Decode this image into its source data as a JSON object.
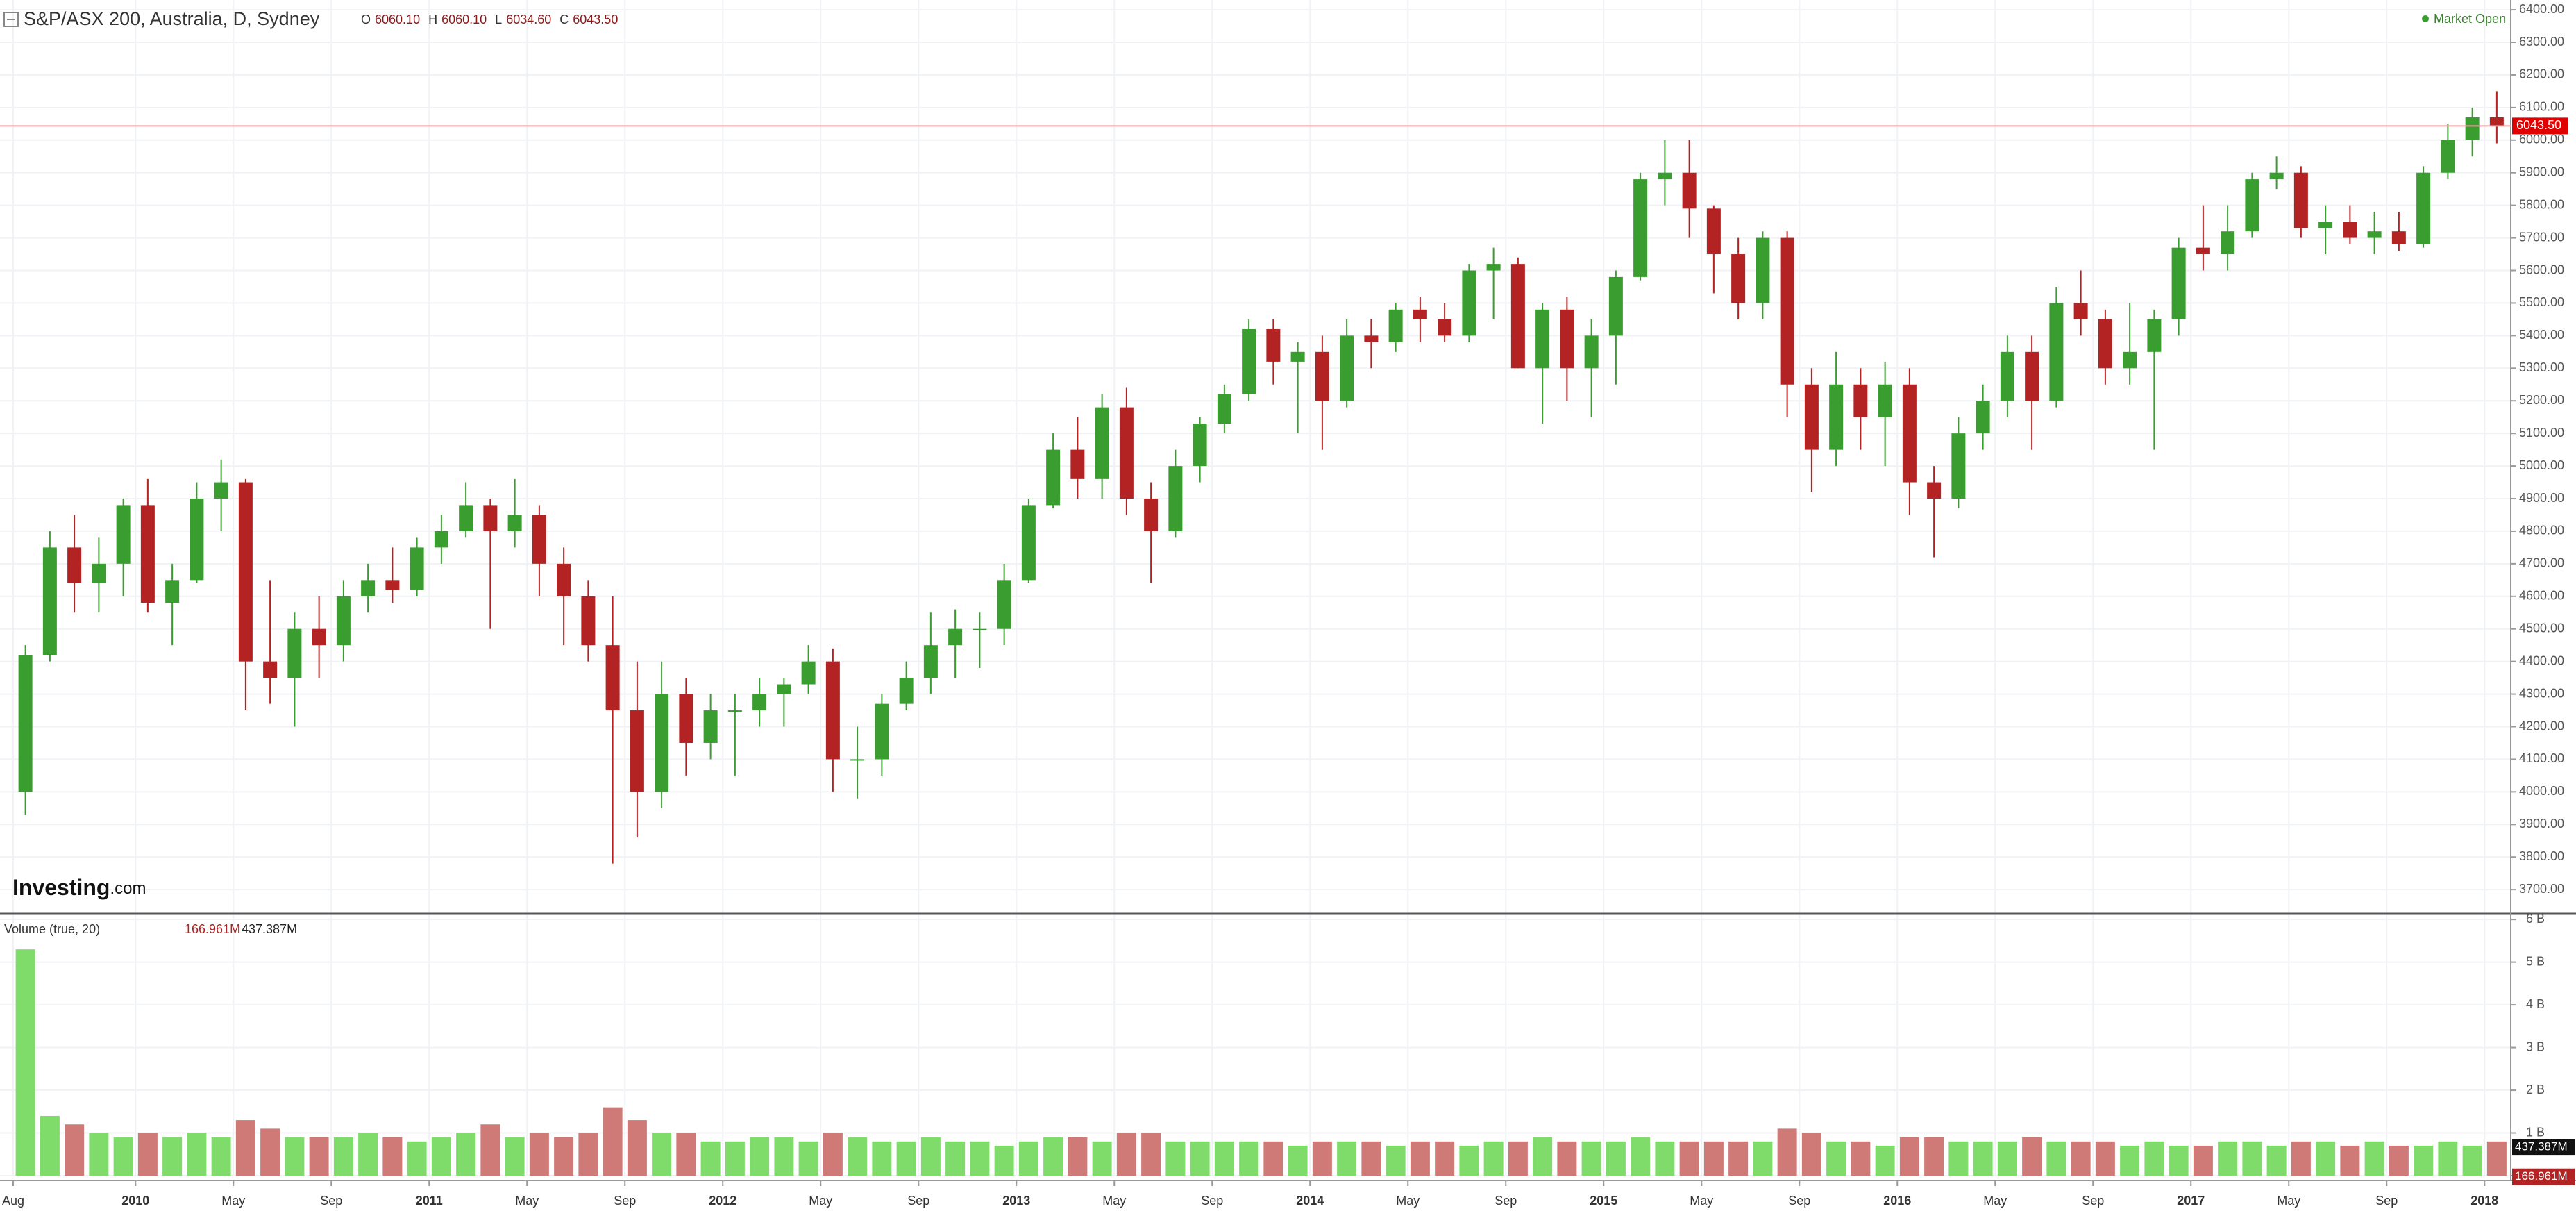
{
  "chart_data": {
    "type": "candlestick",
    "title": "S&P/ASX 200, Australia, D, Sydney",
    "ohlc": [
      {
        "key": "O",
        "value": 6060.1,
        "label": "6060.10"
      },
      {
        "key": "H",
        "value": 6060.1,
        "label": "6060.10"
      },
      {
        "key": "L",
        "value": 6034.6,
        "label": "6034.60"
      },
      {
        "key": "C",
        "value": 6043.5,
        "label": "6043.50"
      }
    ],
    "status": "Market Open",
    "logo": {
      "name": "Investing",
      "suffix": ".com"
    },
    "last_price": {
      "value": 6043.5,
      "label": "6043.50"
    },
    "up_color": "#3a9d2f",
    "down_color": "#b42323",
    "x": [
      "2009-08",
      "2009-09",
      "2009-10",
      "2009-11",
      "2009-12",
      "2010-01",
      "2010-02",
      "2010-03",
      "2010-04",
      "2010-05",
      "2010-06",
      "2010-07",
      "2010-08",
      "2010-09",
      "2010-10",
      "2010-11",
      "2010-12",
      "2011-01",
      "2011-02",
      "2011-03",
      "2011-04",
      "2011-05",
      "2011-06",
      "2011-07",
      "2011-08",
      "2011-09",
      "2011-10",
      "2011-11",
      "2011-12",
      "2012-01",
      "2012-02",
      "2012-03",
      "2012-04",
      "2012-05",
      "2012-06",
      "2012-07",
      "2012-08",
      "2012-09",
      "2012-10",
      "2012-11",
      "2012-12",
      "2013-01",
      "2013-02",
      "2013-03",
      "2013-04",
      "2013-05",
      "2013-06",
      "2013-07",
      "2013-08",
      "2013-09",
      "2013-10",
      "2013-11",
      "2013-12",
      "2014-01",
      "2014-02",
      "2014-03",
      "2014-04",
      "2014-05",
      "2014-06",
      "2014-07",
      "2014-08",
      "2014-09",
      "2014-10",
      "2014-11",
      "2014-12",
      "2015-01",
      "2015-02",
      "2015-03",
      "2015-04",
      "2015-05",
      "2015-06",
      "2015-07",
      "2015-08",
      "2015-09",
      "2015-10",
      "2015-11",
      "2015-12",
      "2016-01",
      "2016-02",
      "2016-03",
      "2016-04",
      "2016-05",
      "2016-06",
      "2016-07",
      "2016-08",
      "2016-09",
      "2016-10",
      "2016-11",
      "2016-12",
      "2017-01",
      "2017-02",
      "2017-03",
      "2017-04",
      "2017-05",
      "2017-06",
      "2017-07",
      "2017-08",
      "2017-09",
      "2017-10",
      "2017-11",
      "2017-12",
      "2018-01"
    ],
    "open": [
      4000,
      4420,
      4750,
      4640,
      4700,
      4880,
      4580,
      4650,
      4900,
      4950,
      4400,
      4350,
      4500,
      4450,
      4600,
      4650,
      4620,
      4750,
      4800,
      4880,
      4800,
      4850,
      4700,
      4600,
      4450,
      4250,
      4000,
      4300,
      4150,
      4250,
      4250,
      4300,
      4330,
      4400,
      4100,
      4100,
      4270,
      4350,
      4450,
      4500,
      4500,
      4650,
      4880,
      5050,
      4960,
      5180,
      4900,
      4800,
      5000,
      5130,
      5220,
      5420,
      5320,
      5350,
      5200,
      5400,
      5380,
      5480,
      5450,
      5400,
      5600,
      5620,
      5300,
      5480,
      5300,
      5400,
      5580,
      5880,
      5900,
      5790,
      5650,
      5500,
      5700,
      5250,
      5050,
      5250,
      5150,
      5250,
      4950,
      4900,
      5100,
      5200,
      5350,
      5200,
      5500,
      5450,
      5300,
      5350,
      5450,
      5670,
      5650,
      5720,
      5880,
      5900,
      5730,
      5750,
      5700,
      5720,
      5680,
      5900,
      6000,
      6070
    ],
    "high": [
      4450,
      4800,
      4850,
      4780,
      4900,
      4960,
      4700,
      4950,
      5020,
      4960,
      4650,
      4550,
      4600,
      4650,
      4700,
      4750,
      4780,
      4850,
      4950,
      4900,
      4960,
      4880,
      4750,
      4650,
      4600,
      4400,
      4400,
      4350,
      4300,
      4300,
      4350,
      4350,
      4450,
      4440,
      4200,
      4300,
      4400,
      4550,
      4560,
      4550,
      4700,
      4900,
      5100,
      5150,
      5220,
      5240,
      4950,
      5050,
      5150,
      5250,
      5450,
      5450,
      5380,
      5400,
      5450,
      5450,
      5500,
      5520,
      5500,
      5620,
      5670,
      5640,
      5500,
      5520,
      5450,
      5600,
      5900,
      6000,
      6000,
      5800,
      5700,
      5720,
      5720,
      5300,
      5350,
      5300,
      5320,
      5300,
      5000,
      5150,
      5250,
      5400,
      5400,
      5550,
      5600,
      5480,
      5500,
      5480,
      5700,
      5800,
      5800,
      5900,
      5950,
      5920,
      5800,
      5800,
      5780,
      5780,
      5920,
      6050,
      6100,
      6150
    ],
    "low": [
      3930,
      4400,
      4550,
      4550,
      4600,
      4550,
      4450,
      4640,
      4800,
      4250,
      4270,
      4200,
      4350,
      4400,
      4550,
      4580,
      4600,
      4700,
      4780,
      4500,
      4750,
      4600,
      4450,
      4400,
      3780,
      3860,
      3950,
      4050,
      4100,
      4050,
      4200,
      4200,
      4300,
      4000,
      3980,
      4050,
      4250,
      4300,
      4350,
      4380,
      4450,
      4640,
      4870,
      4900,
      4900,
      4850,
      4640,
      4780,
      4950,
      5100,
      5200,
      5250,
      5100,
      5050,
      5180,
      5300,
      5350,
      5380,
      5380,
      5380,
      5450,
      5300,
      5130,
      5200,
      5150,
      5250,
      5570,
      5800,
      5700,
      5530,
      5450,
      5450,
      5150,
      4920,
      5000,
      5050,
      5000,
      4850,
      4720,
      4870,
      5050,
      5150,
      5050,
      5180,
      5400,
      5250,
      5250,
      5050,
      5400,
      5600,
      5600,
      5700,
      5850,
      5700,
      5650,
      5680,
      5650,
      5660,
      5670,
      5880,
      5950,
      5990
    ],
    "close": [
      4420,
      4750,
      4640,
      4700,
      4880,
      4580,
      4650,
      4900,
      4950,
      4400,
      4350,
      4500,
      4450,
      4600,
      4650,
      4620,
      4750,
      4800,
      4880,
      4800,
      4850,
      4700,
      4600,
      4450,
      4250,
      4000,
      4300,
      4150,
      4250,
      4250,
      4300,
      4330,
      4400,
      4100,
      4100,
      4270,
      4350,
      4450,
      4500,
      4500,
      4650,
      4880,
      5050,
      4960,
      5180,
      4900,
      4800,
      5000,
      5130,
      5220,
      5420,
      5320,
      5350,
      5200,
      5400,
      5380,
      5480,
      5450,
      5400,
      5600,
      5620,
      5300,
      5480,
      5300,
      5400,
      5580,
      5880,
      5900,
      5790,
      5650,
      5500,
      5700,
      5250,
      5050,
      5250,
      5150,
      5250,
      4950,
      4900,
      5100,
      5200,
      5350,
      5200,
      5500,
      5450,
      5300,
      5350,
      5450,
      5670,
      5650,
      5720,
      5880,
      5900,
      5730,
      5750,
      5700,
      5720,
      5680,
      5900,
      6000,
      6070,
      6043.5
    ],
    "ylim": [
      3630,
      6430
    ],
    "yticks": [
      {
        "value": 3700,
        "label": "3700.00"
      },
      {
        "value": 3800,
        "label": "3800.00"
      },
      {
        "value": 3900,
        "label": "3900.00"
      },
      {
        "value": 4000,
        "label": "4000.00"
      },
      {
        "value": 4100,
        "label": "4100.00"
      },
      {
        "value": 4200,
        "label": "4200.00"
      },
      {
        "value": 4300,
        "label": "4300.00"
      },
      {
        "value": 4400,
        "label": "4400.00"
      },
      {
        "value": 4500,
        "label": "4500.00"
      },
      {
        "value": 4600,
        "label": "4600.00"
      },
      {
        "value": 4700,
        "label": "4700.00"
      },
      {
        "value": 4800,
        "label": "4800.00"
      },
      {
        "value": 4900,
        "label": "4900.00"
      },
      {
        "value": 5000,
        "label": "5000.00"
      },
      {
        "value": 5100,
        "label": "5100.00"
      },
      {
        "value": 5200,
        "label": "5200.00"
      },
      {
        "value": 5300,
        "label": "5300.00"
      },
      {
        "value": 5400,
        "label": "5400.00"
      },
      {
        "value": 5500,
        "label": "5500.00"
      },
      {
        "value": 5600,
        "label": "5600.00"
      },
      {
        "value": 5700,
        "label": "5700.00"
      },
      {
        "value": 5800,
        "label": "5800.00"
      },
      {
        "value": 5900,
        "label": "5900.00"
      },
      {
        "value": 6000,
        "label": "6000.00"
      },
      {
        "value": 6100,
        "label": "6100.00"
      },
      {
        "value": 6200,
        "label": "6200.00"
      },
      {
        "value": 6300,
        "label": "6300.00"
      },
      {
        "value": 6400,
        "label": "6400.00"
      }
    ],
    "xticks": [
      {
        "value": "2009-08",
        "label": "Aug"
      },
      {
        "value": "2010-01",
        "label": "2010"
      },
      {
        "value": "2010-05",
        "label": "May"
      },
      {
        "value": "2010-09",
        "label": "Sep"
      },
      {
        "value": "2011-01",
        "label": "2011"
      },
      {
        "value": "2011-05",
        "label": "May"
      },
      {
        "value": "2011-09",
        "label": "Sep"
      },
      {
        "value": "2012-01",
        "label": "2012"
      },
      {
        "value": "2012-05",
        "label": "May"
      },
      {
        "value": "2012-09",
        "label": "Sep"
      },
      {
        "value": "2013-01",
        "label": "2013"
      },
      {
        "value": "2013-05",
        "label": "May"
      },
      {
        "value": "2013-09",
        "label": "Sep"
      },
      {
        "value": "2014-01",
        "label": "2014"
      },
      {
        "value": "2014-05",
        "label": "May"
      },
      {
        "value": "2014-09",
        "label": "Sep"
      },
      {
        "value": "2015-01",
        "label": "2015"
      },
      {
        "value": "2015-05",
        "label": "May"
      },
      {
        "value": "2015-09",
        "label": "Sep"
      },
      {
        "value": "2016-01",
        "label": "2016"
      },
      {
        "value": "2016-05",
        "label": "May"
      },
      {
        "value": "2016-09",
        "label": "Sep"
      },
      {
        "value": "2017-01",
        "label": "2017"
      },
      {
        "value": "2017-05",
        "label": "May"
      },
      {
        "value": "2017-09",
        "label": "Sep"
      },
      {
        "value": "2018-01",
        "label": "2018"
      }
    ],
    "grid": true,
    "volume": {
      "title": "Volume (true, 20)",
      "up_color": "#7fdc6a",
      "down_color": "#d07a78",
      "values": [
        5.3,
        1.4,
        1.2,
        1.0,
        0.9,
        1.0,
        0.9,
        1.0,
        0.9,
        1.3,
        1.1,
        0.9,
        0.9,
        0.9,
        1.0,
        0.9,
        0.8,
        0.9,
        1.0,
        1.2,
        0.9,
        1.0,
        0.9,
        1.0,
        1.6,
        1.3,
        1.0,
        1.0,
        0.8,
        0.8,
        0.9,
        0.9,
        0.8,
        1.0,
        0.9,
        0.8,
        0.8,
        0.9,
        0.8,
        0.8,
        0.7,
        0.8,
        0.9,
        0.9,
        0.8,
        1.0,
        1.0,
        0.8,
        0.8,
        0.8,
        0.8,
        0.8,
        0.7,
        0.8,
        0.8,
        0.8,
        0.7,
        0.8,
        0.8,
        0.7,
        0.8,
        0.8,
        0.9,
        0.8,
        0.8,
        0.8,
        0.9,
        0.8,
        0.8,
        0.8,
        0.8,
        0.8,
        1.1,
        1.0,
        0.8,
        0.8,
        0.7,
        0.9,
        0.9,
        0.8,
        0.8,
        0.8,
        0.9,
        0.8,
        0.8,
        0.8,
        0.7,
        0.8,
        0.7,
        0.7,
        0.8,
        0.8,
        0.7,
        0.8,
        0.8,
        0.7,
        0.8,
        0.7,
        0.7,
        0.8,
        0.7,
        0.8
      ],
      "ylim": [
        0,
        6.1
      ],
      "yticks": [
        0,
        {
          "value": 1,
          "label": "1 B"
        },
        {
          "value": 2,
          "label": "2 B"
        },
        {
          "value": 3,
          "label": "3 B"
        },
        {
          "value": 4,
          "label": "4 B"
        },
        {
          "value": 5,
          "label": "5 B"
        },
        {
          "value": 6,
          "label": "6 B"
        }
      ],
      "readouts": [
        {
          "value": 0.166961,
          "label": "166.961M"
        },
        {
          "value": 0.437387,
          "label": "437.387M"
        }
      ]
    }
  }
}
